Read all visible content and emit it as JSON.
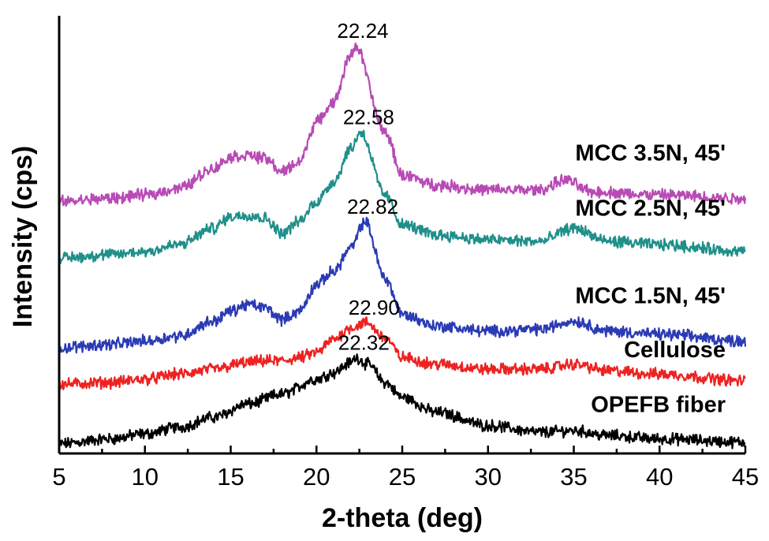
{
  "chart_data": {
    "type": "line",
    "title": "",
    "xlabel": "2-theta (deg)",
    "ylabel": "Intensity (cps)",
    "xlim": [
      5,
      45
    ],
    "ylim": [
      0,
      130
    ],
    "x_ticks": [
      "5",
      "10",
      "15",
      "20",
      "25",
      "30",
      "35",
      "40",
      "45"
    ],
    "y_ticks_shown": false,
    "series": [
      {
        "name": "OPEFB fiber",
        "color": "#000000",
        "peak_label": "22.32",
        "points": [
          [
            5,
            1
          ],
          [
            8,
            2.5
          ],
          [
            10,
            4
          ],
          [
            12,
            6
          ],
          [
            14,
            9
          ],
          [
            16,
            13
          ],
          [
            18,
            16
          ],
          [
            20,
            20.5
          ],
          [
            21,
            22.5
          ],
          [
            22,
            25.5
          ],
          [
            22.3,
            27
          ],
          [
            23,
            25
          ],
          [
            24,
            19.5
          ],
          [
            25,
            15
          ],
          [
            27,
            10.5
          ],
          [
            30,
            6.5
          ],
          [
            33,
            4.5
          ],
          [
            35,
            5
          ],
          [
            37,
            3.5
          ],
          [
            40,
            2.5
          ],
          [
            45,
            1.5
          ]
        ]
      },
      {
        "name": "Cellulose",
        "color": "#ee2222",
        "peak_label": "22.90",
        "points": [
          [
            5,
            19
          ],
          [
            8,
            19.5
          ],
          [
            10,
            20.5
          ],
          [
            12,
            22
          ],
          [
            14,
            23.5
          ],
          [
            16,
            25.5
          ],
          [
            17,
            26
          ],
          [
            18,
            26
          ],
          [
            19,
            27
          ],
          [
            20,
            28.5
          ],
          [
            21,
            32.5
          ],
          [
            22,
            36
          ],
          [
            22.9,
            37.5
          ],
          [
            24,
            33
          ],
          [
            25,
            27
          ],
          [
            27,
            25
          ],
          [
            30,
            23.5
          ],
          [
            33,
            23.5
          ],
          [
            35,
            25
          ],
          [
            37,
            23
          ],
          [
            40,
            22
          ],
          [
            45,
            20
          ]
        ]
      },
      {
        "name": "MCC 1.5N, 45'",
        "color": "#2b3bb5",
        "peak_label": "22.82",
        "points": [
          [
            5,
            30
          ],
          [
            8,
            31
          ],
          [
            10,
            32
          ],
          [
            12,
            33.5
          ],
          [
            14,
            38
          ],
          [
            15,
            41
          ],
          [
            16,
            43
          ],
          [
            17,
            42
          ],
          [
            18,
            38.5
          ],
          [
            19,
            41
          ],
          [
            20,
            49
          ],
          [
            21,
            53
          ],
          [
            22,
            60
          ],
          [
            22.82,
            68
          ],
          [
            24,
            51
          ],
          [
            25,
            40
          ],
          [
            27,
            36.5
          ],
          [
            30,
            35
          ],
          [
            33,
            35.5
          ],
          [
            35,
            38
          ],
          [
            37,
            35
          ],
          [
            40,
            34
          ],
          [
            45,
            32
          ]
        ]
      },
      {
        "name": "MCC 2.5N, 45'",
        "color": "#1f8f8a",
        "peak_label": "22.58",
        "points": [
          [
            5,
            57
          ],
          [
            8,
            58
          ],
          [
            10,
            59
          ],
          [
            12,
            61
          ],
          [
            14,
            66
          ],
          [
            15,
            69.5
          ],
          [
            16,
            70
          ],
          [
            17,
            69
          ],
          [
            18,
            64.5
          ],
          [
            19,
            68
          ],
          [
            20,
            74
          ],
          [
            21,
            80
          ],
          [
            22,
            90
          ],
          [
            22.58,
            95
          ],
          [
            24,
            76
          ],
          [
            25,
            67
          ],
          [
            27,
            64
          ],
          [
            30,
            62.5
          ],
          [
            33,
            62
          ],
          [
            35,
            66
          ],
          [
            37,
            62
          ],
          [
            40,
            61
          ],
          [
            45,
            59
          ]
        ]
      },
      {
        "name": "MCC 3.5N, 45'",
        "color": "#b84ab5",
        "peak_label": "22.24",
        "points": [
          [
            5,
            74
          ],
          [
            8,
            75
          ],
          [
            10,
            76
          ],
          [
            12,
            78
          ],
          [
            14,
            84
          ],
          [
            15,
            87.5
          ],
          [
            16,
            88
          ],
          [
            17,
            87
          ],
          [
            18,
            83
          ],
          [
            19,
            86
          ],
          [
            20,
            98
          ],
          [
            21,
            104
          ],
          [
            22,
            118
          ],
          [
            22.24,
            121
          ],
          [
            24,
            95
          ],
          [
            25,
            82
          ],
          [
            27,
            79
          ],
          [
            30,
            77.5
          ],
          [
            33,
            77.5
          ],
          [
            34.5,
            80.5
          ],
          [
            36,
            77
          ],
          [
            40,
            76
          ],
          [
            45,
            75
          ]
        ]
      }
    ]
  }
}
